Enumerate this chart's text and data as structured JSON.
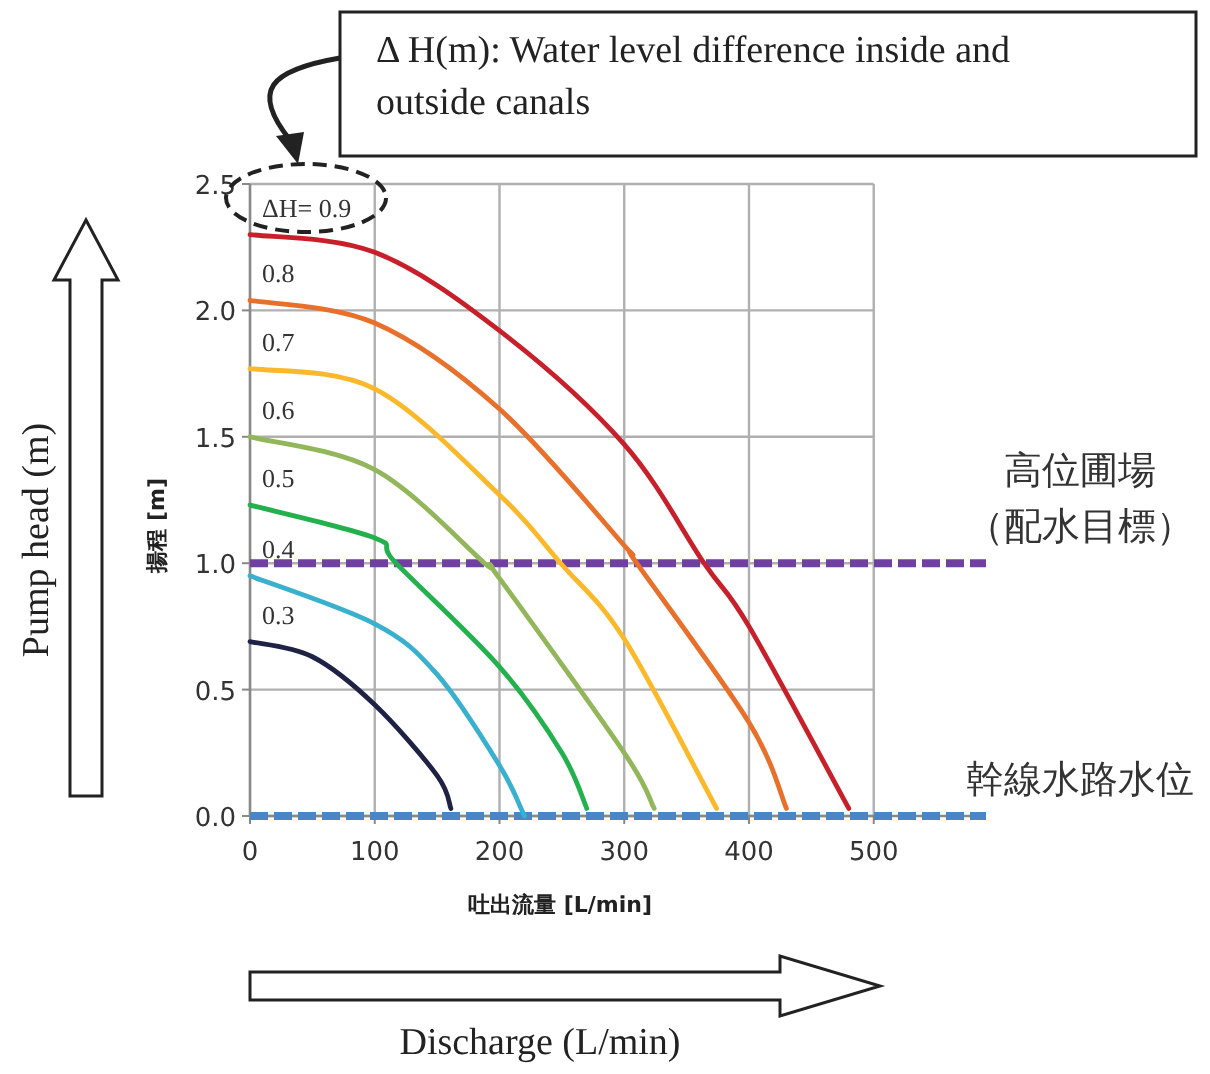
{
  "chart_data": {
    "type": "line",
    "xlabel": "吐出流量 [L/min]",
    "ylabel": "揚程 [m]",
    "xlim": [
      0,
      590
    ],
    "xticks": [
      0,
      100,
      200,
      300,
      400,
      500
    ],
    "ylim": [
      0,
      2.5
    ],
    "yticks": [
      {
        "value": 0,
        "label": "0.0"
      },
      {
        "value": 0.5,
        "label": "0.5"
      },
      {
        "value": 1,
        "label": "1.0"
      },
      {
        "value": 1.5,
        "label": "1.5"
      },
      {
        "value": 2,
        "label": "2.0"
      },
      {
        "value": 2.5,
        "label": "2.5"
      }
    ],
    "grid": true,
    "marker": "none",
    "line_style": "solid",
    "series": [
      {
        "name": "ΔH= 0.9",
        "color": "#c8202a",
        "x": [
          0,
          100,
          200,
          300,
          364,
          400,
          480
        ],
        "values": [
          2.3,
          2.23,
          1.92,
          1.47,
          1.0,
          0.75,
          0.03
        ]
      },
      {
        "name": "0.8",
        "color": "#e8702a",
        "x": [
          0,
          100,
          200,
          300,
          310,
          400,
          430
        ],
        "values": [
          2.04,
          1.95,
          1.61,
          1.07,
          1.0,
          0.37,
          0.03
        ]
      },
      {
        "name": "0.7",
        "color": "#fbb829",
        "x": [
          0,
          100,
          200,
          249,
          300,
          374
        ],
        "values": [
          1.77,
          1.69,
          1.27,
          1.0,
          0.7,
          0.03
        ]
      },
      {
        "name": "0.6",
        "color": "#92b65a",
        "x": [
          0,
          100,
          188,
          200,
          300,
          324
        ],
        "values": [
          1.5,
          1.37,
          1.0,
          0.94,
          0.25,
          0.03
        ]
      },
      {
        "name": "0.5",
        "color": "#22b14c",
        "x": [
          0,
          100,
          117,
          200,
          250,
          270
        ],
        "values": [
          1.23,
          1.1,
          1.0,
          0.59,
          0.25,
          0.03
        ]
      },
      {
        "name": "0.4",
        "color": "#3ab0cf",
        "x": [
          0,
          100,
          150,
          200,
          220
        ],
        "values": [
          0.95,
          0.76,
          0.56,
          0.2,
          0.0
        ]
      },
      {
        "name": "0.3",
        "color": "#1f2244",
        "x": [
          0,
          50,
          100,
          150,
          161
        ],
        "values": [
          0.69,
          0.63,
          0.44,
          0.16,
          0.03
        ]
      }
    ],
    "ref_lines": [
      {
        "axis": "y",
        "value": 1,
        "label": "高位圃場（配水目標）",
        "color": "#7040a0",
        "line_style": "dashed"
      },
      {
        "axis": "y",
        "value": 0,
        "label": "幹線水路水位",
        "color": "#4a86c5",
        "line_style": "dashed"
      }
    ],
    "annotations": [
      "Δ H(m): Water level difference inside and outside canals",
      "Pump head (m)",
      "Discharge (L/min)"
    ]
  }
}
